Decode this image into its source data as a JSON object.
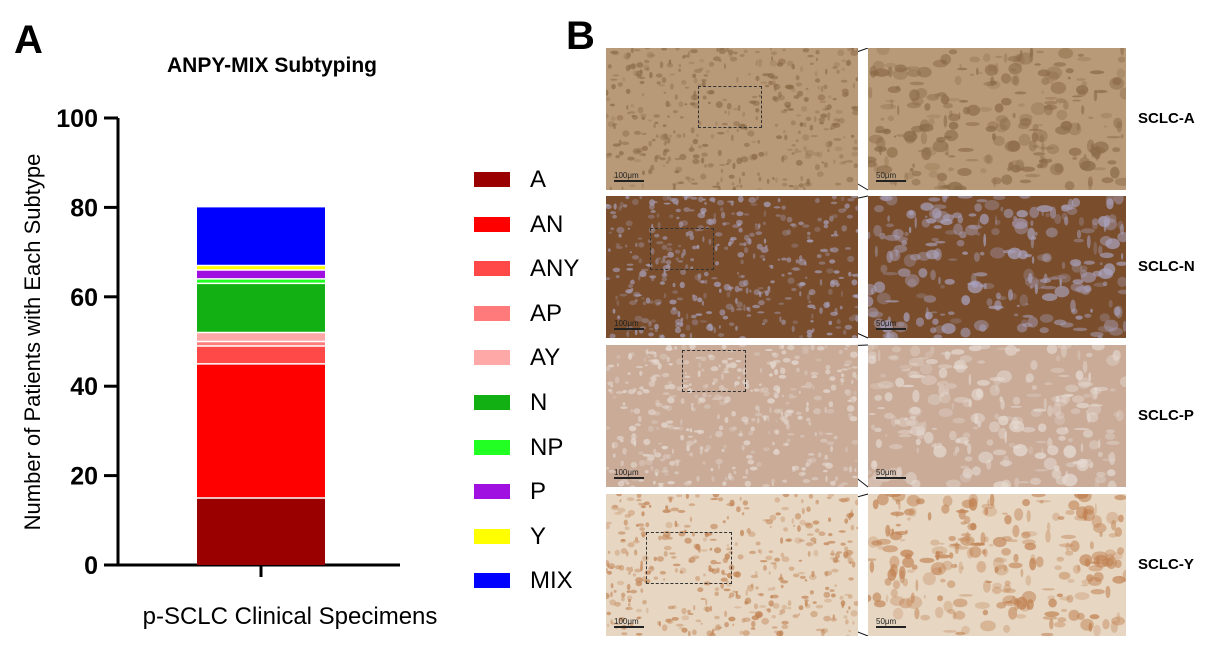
{
  "panel_a": {
    "letter": "A"
  },
  "panel_b": {
    "letter": "B"
  },
  "chart_data": {
    "type": "bar",
    "stacked": true,
    "title": "ANPY-MIX Subtyping",
    "xlabel": "p-SCLC Clinical Specimens",
    "ylabel": "Number of Patients with Each Subtype",
    "ylim": [
      0,
      100
    ],
    "yticks": [
      0,
      20,
      40,
      60,
      80,
      100
    ],
    "categories": [
      ""
    ],
    "grid": false,
    "legend_position": "right",
    "series": [
      {
        "name": "A",
        "values": [
          15
        ],
        "color": "#9B0000"
      },
      {
        "name": "AN",
        "values": [
          30
        ],
        "color": "#FF0000"
      },
      {
        "name": "ANY",
        "values": [
          4
        ],
        "color": "#FF4848"
      },
      {
        "name": "AP",
        "values": [
          1
        ],
        "color": "#FF7A7A"
      },
      {
        "name": "AY",
        "values": [
          2
        ],
        "color": "#FFA8A8"
      },
      {
        "name": "N",
        "values": [
          11
        ],
        "color": "#12B012"
      },
      {
        "name": "NP",
        "values": [
          1
        ],
        "color": "#22FF22"
      },
      {
        "name": "P",
        "values": [
          2
        ],
        "color": "#A010E0"
      },
      {
        "name": "Y",
        "values": [
          1
        ],
        "color": "#FFFF00"
      },
      {
        "name": "MIX",
        "values": [
          13
        ],
        "color": "#0000FF"
      }
    ]
  },
  "micrographs": [
    {
      "subtype": "SCLC-A",
      "scale_low": "100μm",
      "scale_high": "50μm",
      "tint": "#b89a78",
      "tint2": "#8a6a48"
    },
    {
      "subtype": "SCLC-N",
      "scale_low": "100μm",
      "scale_high": "50μm",
      "tint": "#7a4e2c",
      "tint2": "#a9a2be"
    },
    {
      "subtype": "SCLC-P",
      "scale_low": "100μm",
      "scale_high": "50μm",
      "tint": "#c9ab98",
      "tint2": "#e6dad2"
    },
    {
      "subtype": "SCLC-Y",
      "scale_low": "100μm",
      "scale_high": "50μm",
      "tint": "#e6d6c2",
      "tint2": "#c08050"
    }
  ]
}
